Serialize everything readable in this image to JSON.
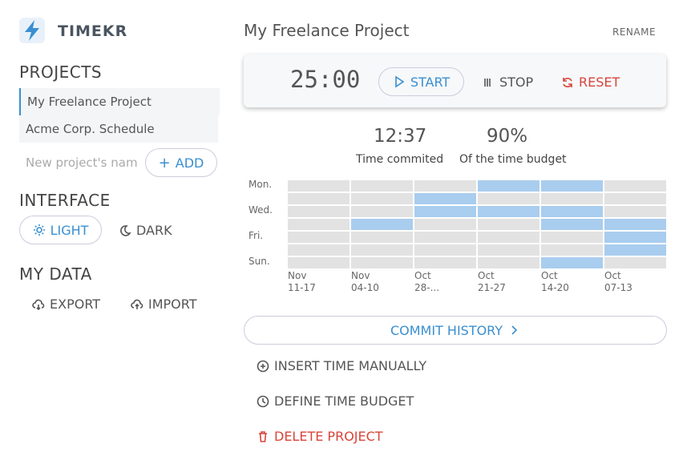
{
  "sidebar": {
    "brand": "TIMEKR",
    "projects_heading": "PROJECTS",
    "projects": [
      "My Freelance Project",
      "Acme Corp. Schedule"
    ],
    "new_project_placeholder": "New project's nam",
    "add_button": "ADD",
    "interface_heading": "INTERFACE",
    "light_button": "LIGHT",
    "dark_button": "DARK",
    "data_heading": "MY DATA",
    "export_button": "EXPORT",
    "import_button": "IMPORT"
  },
  "main": {
    "project_title": "My Freelance Project",
    "rename_button": "RENAME",
    "timer": {
      "time": "25:00",
      "start": "START",
      "stop": "STOP",
      "reset": "RESET"
    },
    "stats": [
      {
        "value": "12:37",
        "label": "Time commited"
      },
      {
        "value": "90%",
        "label": "Of the time budget"
      }
    ],
    "heatmap": {
      "row_labels": [
        "Mon.",
        null,
        "Wed.",
        null,
        "Fri.",
        null,
        "Sun."
      ],
      "columns": [
        {
          "month": "Nov",
          "range": "11-17"
        },
        {
          "month": "Nov",
          "range": "04-10"
        },
        {
          "month": "Oct",
          "range": "28-..."
        },
        {
          "month": "Oct",
          "range": "21-27"
        },
        {
          "month": "Oct",
          "range": "14-20"
        },
        {
          "month": "Oct",
          "range": "07-13"
        }
      ],
      "active": [
        [
          0,
          0,
          0,
          1,
          1,
          0
        ],
        [
          0,
          0,
          1,
          0,
          0,
          0
        ],
        [
          0,
          0,
          1,
          1,
          1,
          0
        ],
        [
          0,
          1,
          0,
          0,
          1,
          1
        ],
        [
          0,
          0,
          0,
          0,
          0,
          1
        ],
        [
          0,
          0,
          0,
          0,
          0,
          1
        ],
        [
          0,
          0,
          0,
          0,
          1,
          0
        ]
      ]
    },
    "commit_history": "COMMIT HISTORY",
    "actions": {
      "insert": "INSERT TIME MANUALLY",
      "budget": "DEFINE TIME BUDGET",
      "delete": "DELETE PROJECT"
    }
  }
}
